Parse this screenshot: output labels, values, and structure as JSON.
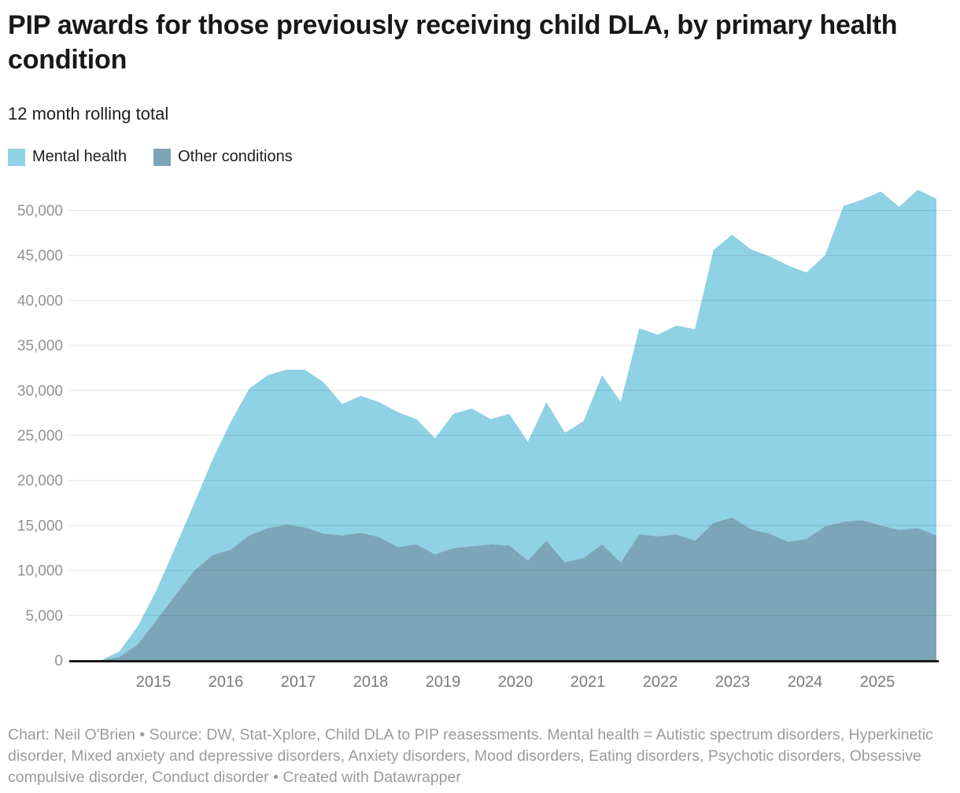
{
  "header": {
    "title": "PIP awards for those previously receiving child DLA, by primary health condition",
    "subtitle": "12 month rolling total"
  },
  "legend": {
    "items": [
      {
        "label": "Mental health",
        "color": "#8FD1E5"
      },
      {
        "label": "Other conditions",
        "color": "#7CA6B8"
      }
    ]
  },
  "footer": {
    "text": "Chart: Neil O'Brien • Source: DW, Stat-Xplore, Child DLA to PIP reasessments. Mental health = Autistic spectrum disorders, Hyperkinetic disorder, Mixed anxiety and depressive disorders, Anxiety disorders, Mood disorders, Eating disorders, Psychotic disorders, Obsessive compulsive disorder, Conduct disorder  • Created with Datawrapper"
  },
  "chart_data": {
    "type": "area",
    "stacked": true,
    "stack_bottom": "Other conditions",
    "x": [
      "2014-07",
      "2014-10",
      "2015-01",
      "2015-04",
      "2015-07",
      "2015-10",
      "2016-01",
      "2016-04",
      "2016-07",
      "2016-10",
      "2017-01",
      "2017-04",
      "2017-07",
      "2017-10",
      "2018-01",
      "2018-04",
      "2018-07",
      "2018-10",
      "2019-01",
      "2019-04",
      "2019-07",
      "2019-10",
      "2020-01",
      "2020-04",
      "2020-07",
      "2020-10",
      "2021-01",
      "2021-04",
      "2021-07",
      "2021-10",
      "2022-01",
      "2022-04",
      "2022-07",
      "2022-10",
      "2023-01",
      "2023-04",
      "2023-07",
      "2023-10",
      "2024-01",
      "2024-04",
      "2024-07",
      "2024-10",
      "2025-01",
      "2025-04",
      "2025-07",
      "2025-10"
    ],
    "series": [
      {
        "name": "Mental health",
        "color": "#8FD1E5",
        "values": [
          0,
          600,
          2000,
          3300,
          5300,
          7400,
          10500,
          14200,
          16300,
          17000,
          17200,
          17500,
          16800,
          14600,
          15200,
          15000,
          15000,
          13900,
          12900,
          14900,
          15300,
          13900,
          14600,
          13200,
          15400,
          14400,
          15200,
          18800,
          17800,
          22900,
          22400,
          23200,
          23500,
          30300,
          31400,
          31100,
          30800,
          30700,
          29600,
          30100,
          35100,
          35600,
          37100,
          35900,
          37600,
          37400
        ]
      },
      {
        "name": "Other conditions",
        "color": "#7CA6B8",
        "values": [
          0,
          400,
          1800,
          4500,
          7200,
          9900,
          11700,
          12300,
          13900,
          14700,
          15100,
          14800,
          14100,
          13900,
          14200,
          13700,
          12600,
          12900,
          11800,
          12500,
          12700,
          12900,
          12800,
          11100,
          13300,
          10900,
          11400,
          12900,
          10900,
          14000,
          13800,
          14000,
          13300,
          15300,
          15900,
          14600,
          14100,
          13200,
          13500,
          14900,
          15400,
          15600,
          15000,
          14500,
          14700,
          13900
        ]
      }
    ],
    "y_ticks": {
      "values": [
        0,
        5000,
        10000,
        15000,
        20000,
        25000,
        30000,
        35000,
        40000,
        45000,
        50000
      ],
      "labels": [
        "0",
        "5,000",
        "10,000",
        "15,000",
        "20,000",
        "25,000",
        "30,000",
        "35,000",
        "40,000",
        "45,000",
        "50,000"
      ]
    },
    "x_tick_labels": [
      "2015",
      "2016",
      "2017",
      "2018",
      "2019",
      "2020",
      "2021",
      "2022",
      "2023",
      "2024",
      "2025"
    ],
    "ylim": [
      0,
      52800
    ],
    "grid": true,
    "legend_position": "top-left",
    "axis_colors": {
      "grid": "#e3e3e3",
      "baseline": "#1a1a1a",
      "y_label": "#929292",
      "x_label": "#7a7a7a"
    }
  }
}
